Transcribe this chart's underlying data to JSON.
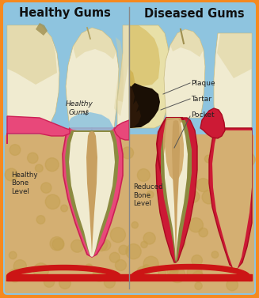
{
  "title_left": "Healthy Gums",
  "title_right": "Diseased Gums",
  "bg_blue": "#8EC4DF",
  "border_color": "#F5891F",
  "bone_color": "#D4AF72",
  "bone_dark": "#B8973A",
  "gum_pink": "#E8487A",
  "gum_pink_edge": "#CC2055",
  "gum_red": "#CC1A35",
  "gum_red_edge": "#AA0A20",
  "tooth_cream": "#F0EBD0",
  "tooth_yellow": "#DDD098",
  "tooth_shadow": "#C8BB80",
  "plaque_dark": "#1A0F05",
  "root_bone_inner": "#C8A060",
  "red_vessel": "#CC1515",
  "divider": "#888888",
  "label_color": "#222222",
  "olive_root": "#8C8A40",
  "label_healthy_gums": "Healthy\nGums",
  "label_healthy_bone": "Healthy\nBone\nLevel",
  "label_plaque": "Plaque",
  "label_tartar": "Tartar",
  "label_pocket": "Pocket",
  "label_reduced_bone": "Reduced\nBone\nLevel"
}
